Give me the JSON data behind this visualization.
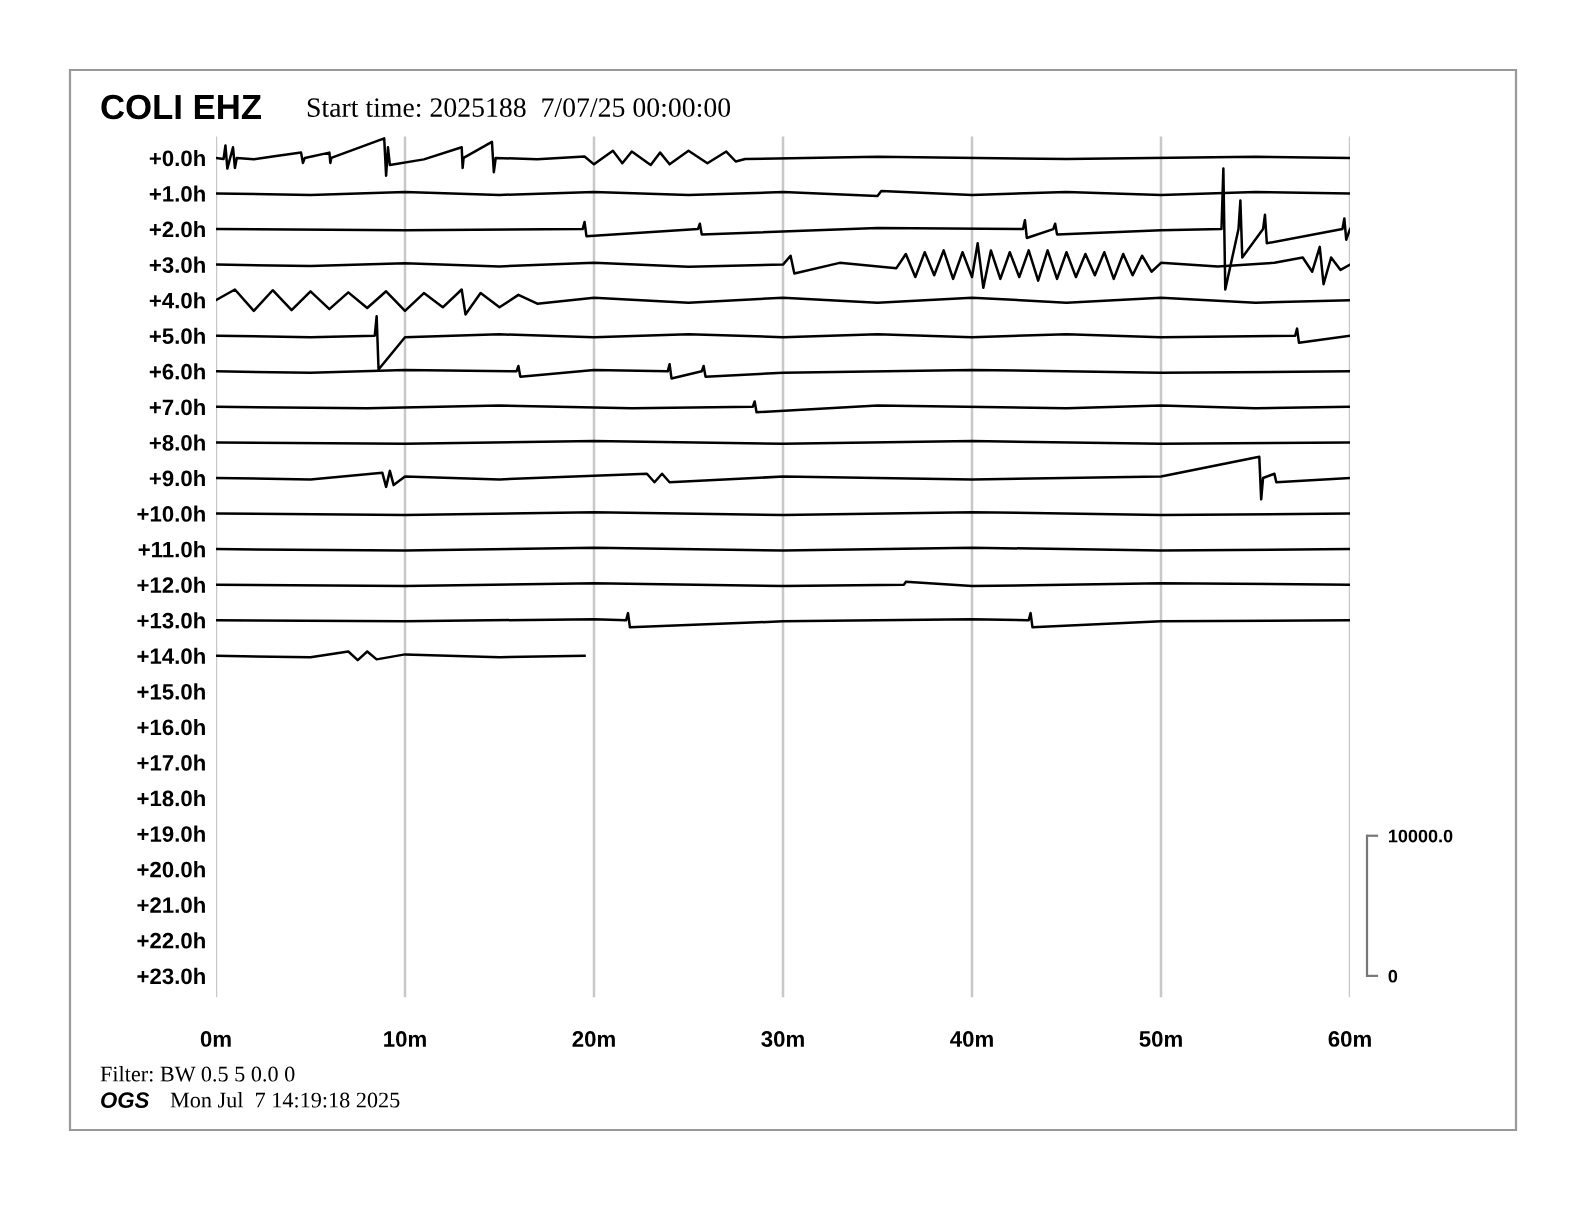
{
  "chart_data": {
    "type": "line",
    "title": "COLI EHZ",
    "subtitle": "Start time: 2025188  7/07/25 00:00:00",
    "annotations": [
      "Filter: BW 0.5 5 0.0 0",
      "OGS",
      "Mon Jul  7 14:19:18 2025"
    ],
    "xlim": [
      0,
      60
    ],
    "xticks": [
      {
        "value": 0,
        "label": "0m"
      },
      {
        "value": 10,
        "label": "10m"
      },
      {
        "value": 20,
        "label": "20m"
      },
      {
        "value": 30,
        "label": "30m"
      },
      {
        "value": 40,
        "label": "40m"
      },
      {
        "value": 50,
        "label": "50m"
      },
      {
        "value": 60,
        "label": "60m"
      }
    ],
    "ylim": [
      23.6,
      -0.6
    ],
    "yticks": [
      {
        "value": 0,
        "label": "+0.0h"
      },
      {
        "value": 1,
        "label": "+1.0h"
      },
      {
        "value": 2,
        "label": "+2.0h"
      },
      {
        "value": 3,
        "label": "+3.0h"
      },
      {
        "value": 4,
        "label": "+4.0h"
      },
      {
        "value": 5,
        "label": "+5.0h"
      },
      {
        "value": 6,
        "label": "+6.0h"
      },
      {
        "value": 7,
        "label": "+7.0h"
      },
      {
        "value": 8,
        "label": "+8.0h"
      },
      {
        "value": 9,
        "label": "+9.0h"
      },
      {
        "value": 10,
        "label": "+10.0h"
      },
      {
        "value": 11,
        "label": "+11.0h"
      },
      {
        "value": 12,
        "label": "+12.0h"
      },
      {
        "value": 13,
        "label": "+13.0h"
      },
      {
        "value": 14,
        "label": "+14.0h"
      },
      {
        "value": 15,
        "label": "+15.0h"
      },
      {
        "value": 16,
        "label": "+16.0h"
      },
      {
        "value": 17,
        "label": "+17.0h"
      },
      {
        "value": 18,
        "label": "+18.0h"
      },
      {
        "value": 19,
        "label": "+19.0h"
      },
      {
        "value": 20,
        "label": "+20.0h"
      },
      {
        "value": 21,
        "label": "+21.0h"
      },
      {
        "value": 22,
        "label": "+22.0h"
      },
      {
        "value": 23,
        "label": "+23.0h"
      }
    ],
    "y2lim": [
      -1523,
      59897
    ],
    "y2ticks": [
      {
        "value": 0,
        "label": "0"
      },
      {
        "value": 10000,
        "label": "10000.0"
      }
    ],
    "grid": "x",
    "legend": false,
    "marker": "none",
    "line_style": "solid",
    "series": [
      {
        "color": "#000000",
        "x": [
          0,
          0.4,
          0.5,
          0.6,
          0.9,
          1.0,
          1.1,
          2,
          3,
          4.5,
          4.6,
          4.7,
          6,
          6.05,
          6.1,
          8.9,
          9.0,
          9.1,
          9.2,
          11,
          13,
          13.05,
          13.1,
          14.6,
          14.7,
          14.8,
          17,
          19.5,
          20,
          21,
          21.5,
          22,
          23,
          23.5,
          24,
          25,
          26,
          27,
          27.5,
          28,
          35,
          45,
          55,
          60
        ],
        "values": [
          0,
          0.03,
          -0.35,
          0.3,
          -0.3,
          0.28,
          0,
          0.04,
          -0.04,
          -0.15,
          0.14,
          0,
          -0.15,
          0.14,
          0,
          -0.55,
          0.5,
          -0.3,
          0.2,
          0.04,
          -0.3,
          0.28,
          0,
          -0.45,
          0.4,
          0,
          0.04,
          -0.04,
          0.18,
          -0.2,
          0.15,
          -0.18,
          0.2,
          -0.15,
          0.18,
          -0.2,
          0.15,
          -0.18,
          0.1,
          0.03,
          -0.03,
          0.03,
          -0.03,
          0
        ]
      },
      {
        "color": "#000000",
        "x": [
          0,
          5,
          10,
          15,
          20,
          25,
          30,
          35,
          35.2,
          40,
          45,
          50,
          55,
          60
        ],
        "values": [
          1,
          1.04,
          0.96,
          1.04,
          0.96,
          1.04,
          0.96,
          1.07,
          0.93,
          1.04,
          0.96,
          1.04,
          0.96,
          1
        ]
      },
      {
        "color": "#000000",
        "x": [
          0,
          10,
          19.4,
          19.5,
          19.6,
          25.5,
          25.6,
          25.7,
          35,
          42.7,
          42.8,
          42.9,
          44.3,
          44.4,
          44.5,
          50,
          53.2,
          53.3,
          53.4,
          54.1,
          54.2,
          54.3,
          55.4,
          55.5,
          55.6,
          59.6,
          59.7,
          59.8,
          60
        ],
        "values": [
          2,
          2.03,
          2,
          1.8,
          2.2,
          2,
          1.85,
          2.15,
          1.97,
          2,
          1.75,
          2.25,
          2,
          1.85,
          2.15,
          2.03,
          2,
          0.3,
          3.7,
          2,
          1.2,
          2.8,
          2,
          1.6,
          2.4,
          2,
          1.7,
          2.3,
          2
        ]
      },
      {
        "color": "#000000",
        "x": [
          0,
          5,
          10,
          15,
          20,
          25,
          30,
          30.4,
          30.6,
          33,
          36,
          36.5,
          37,
          37.5,
          38,
          38.5,
          39,
          39.5,
          40,
          40.3,
          40.6,
          41,
          41.5,
          42,
          42.5,
          43,
          43.5,
          44,
          44.5,
          45,
          45.5,
          46,
          46.5,
          47,
          47.5,
          48,
          48.5,
          49,
          49.5,
          50,
          53,
          56,
          57.5,
          58,
          58.4,
          58.6,
          59,
          59.5,
          60
        ],
        "values": [
          3,
          3.04,
          2.96,
          3.05,
          2.95,
          3.06,
          3,
          2.75,
          3.25,
          2.95,
          3.1,
          2.7,
          3.35,
          2.65,
          3.3,
          2.6,
          3.4,
          2.65,
          3.35,
          2.4,
          3.65,
          2.6,
          3.4,
          2.65,
          3.35,
          2.6,
          3.45,
          2.6,
          3.4,
          2.65,
          3.35,
          2.7,
          3.3,
          2.65,
          3.4,
          2.7,
          3.3,
          2.75,
          3.2,
          2.95,
          3.05,
          2.95,
          2.8,
          3.2,
          2.5,
          3.55,
          2.8,
          3.15,
          3
        ]
      },
      {
        "color": "#000000",
        "x": [
          0,
          1,
          2,
          3,
          4,
          5,
          6,
          7,
          8,
          9,
          10,
          11,
          12,
          13,
          13.2,
          14,
          15,
          16,
          17,
          20,
          25,
          30,
          35,
          40,
          45,
          50,
          55,
          60
        ],
        "values": [
          4,
          3.7,
          4.3,
          3.72,
          4.28,
          3.75,
          4.25,
          3.78,
          4.22,
          3.75,
          4.3,
          3.8,
          4.2,
          3.7,
          4.4,
          3.8,
          4.2,
          3.85,
          4.1,
          3.93,
          4.07,
          3.93,
          4.07,
          3.93,
          4.07,
          3.93,
          4.07,
          4
        ]
      },
      {
        "color": "#000000",
        "x": [
          0,
          5,
          8.4,
          8.5,
          8.6,
          10,
          15,
          20,
          25,
          30,
          35,
          40,
          45,
          50,
          57.1,
          57.2,
          57.3,
          60
        ],
        "values": [
          5,
          5.04,
          5,
          4.45,
          5.95,
          5.04,
          4.96,
          5.04,
          4.96,
          5.04,
          4.96,
          5.04,
          4.96,
          5.04,
          5,
          4.8,
          5.2,
          5
        ]
      },
      {
        "color": "#000000",
        "x": [
          0,
          5,
          10,
          15.9,
          16,
          16.1,
          20,
          23.9,
          24,
          24.1,
          25.7,
          25.8,
          25.9,
          30,
          40,
          50,
          60
        ],
        "values": [
          6,
          6.04,
          5.96,
          6,
          5.85,
          6.15,
          5.96,
          6,
          5.8,
          6.2,
          6,
          5.85,
          6.15,
          6.04,
          5.96,
          6.04,
          6
        ]
      },
      {
        "color": "#000000",
        "x": [
          0,
          8,
          15,
          22,
          28.4,
          28.5,
          28.6,
          35,
          45,
          50,
          55,
          60
        ],
        "values": [
          7,
          7.04,
          6.96,
          7.04,
          7,
          6.85,
          7.15,
          6.96,
          7.04,
          6.96,
          7.04,
          7
        ]
      },
      {
        "color": "#000000",
        "x": [
          0,
          10,
          20,
          30,
          40,
          50,
          60
        ],
        "values": [
          8,
          8.04,
          7.96,
          8.04,
          7.96,
          8.04,
          8
        ]
      },
      {
        "color": "#000000",
        "x": [
          0,
          5,
          8.8,
          9,
          9.2,
          9.4,
          10,
          15,
          22.8,
          23.2,
          23.6,
          24,
          30,
          40,
          50,
          55.2,
          55.3,
          55.4,
          56,
          56.1,
          60
        ],
        "values": [
          9,
          9.04,
          8.85,
          9.25,
          8.8,
          9.2,
          8.96,
          9.04,
          8.88,
          9.12,
          8.88,
          9.12,
          8.96,
          9.04,
          8.96,
          8.4,
          9.6,
          9,
          8.88,
          9.12,
          9
        ]
      },
      {
        "color": "#000000",
        "x": [
          0,
          10,
          20,
          30,
          40,
          50,
          60
        ],
        "values": [
          10,
          10.04,
          9.96,
          10.04,
          9.96,
          10.04,
          10
        ]
      },
      {
        "color": "#000000",
        "x": [
          0,
          10,
          20,
          30,
          40,
          50,
          60
        ],
        "values": [
          11,
          11.04,
          10.96,
          11.04,
          10.96,
          11.04,
          11
        ]
      },
      {
        "color": "#000000",
        "x": [
          0,
          10,
          20,
          30,
          36.4,
          36.5,
          40,
          50,
          60
        ],
        "values": [
          12,
          12.04,
          11.96,
          12.04,
          12,
          11.92,
          12.04,
          11.96,
          12
        ]
      },
      {
        "color": "#000000",
        "x": [
          0,
          10,
          20,
          21.7,
          21.8,
          21.9,
          30,
          40,
          43,
          43.1,
          43.2,
          50,
          60
        ],
        "values": [
          13,
          13.03,
          12.97,
          13,
          12.8,
          13.2,
          13.03,
          12.97,
          13,
          12.8,
          13.2,
          13.03,
          13
        ]
      },
      {
        "color": "#000000",
        "x": [
          0,
          5,
          7,
          7.5,
          8,
          8.5,
          10,
          15,
          19.5
        ],
        "values": [
          14,
          14.04,
          13.88,
          14.12,
          13.88,
          14.1,
          13.96,
          14.04,
          14
        ]
      }
    ]
  }
}
